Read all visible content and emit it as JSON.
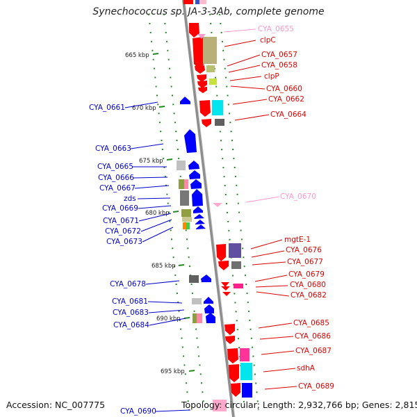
{
  "title": "Synechococcus sp. JA-3-3Ab, complete genome",
  "footer": {
    "accession": "Accession: NC_007775",
    "topology": "Topology: circular; Length: 2,932,766 bp; Genes: 2,815"
  },
  "colors": {
    "forward_strand": "#ff0000",
    "reverse_strand": "#0000ff",
    "pseudo_gene": "#ff88bb",
    "label_forward": "#dd0000",
    "label_reverse": "#0000cc",
    "backbone": "#999999",
    "tick_mark": "#228822"
  },
  "kbp_labels": [
    "665 kbp",
    "670 kbp",
    "675 kbp",
    "680 kbp",
    "685 kbp",
    "690 kbp",
    "695 kbp"
  ],
  "left_labels": [
    "CYA_0661",
    "CYA_0663",
    "CYA_0665",
    "CYA_0666",
    "CYA_0667",
    "zds",
    "CYA_0669",
    "CYA_0671",
    "CYA_0672",
    "CYA_0673",
    "CYA_0678",
    "CYA_0681",
    "CYA_0683",
    "CYA_0684",
    "CYA_0690"
  ],
  "right_labels": [
    "CYA_0655",
    "clpC",
    "CYA_0657",
    "CYA_0658",
    "clpP",
    "CYA_0660",
    "CYA_0662",
    "CYA_0664",
    "CYA_0670",
    "mgtE-1",
    "CYA_0676",
    "CYA_0677",
    "CYA_0679",
    "CYA_0680",
    "CYA_0682",
    "CYA_0685",
    "CYA_0686",
    "CYA_0687",
    "sdhA",
    "CYA_0689"
  ]
}
